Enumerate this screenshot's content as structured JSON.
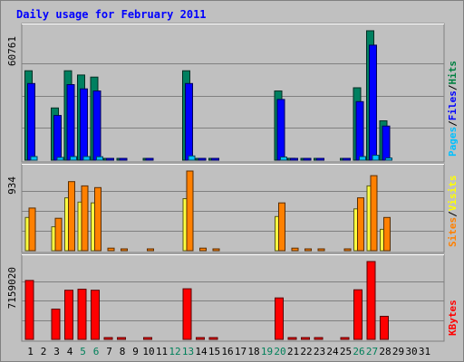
{
  "chart_data": {
    "type": "bar",
    "title": "Daily usage for February 2011",
    "days": [
      1,
      2,
      3,
      4,
      5,
      6,
      7,
      8,
      9,
      10,
      11,
      12,
      13,
      14,
      15,
      16,
      17,
      18,
      19,
      20,
      21,
      22,
      23,
      24,
      25,
      26,
      27,
      28,
      29,
      30,
      31
    ],
    "weekend_days": [
      5,
      6,
      12,
      13,
      19,
      20,
      26,
      27
    ],
    "panels": [
      {
        "name": "hits-files-pages",
        "ymax_label": "60761",
        "ymax": 60761,
        "legend": [
          {
            "text": "Pages",
            "color": "#00c0ff"
          },
          {
            "text": "/",
            "color": "#000000"
          },
          {
            "text": "Files",
            "color": "#0000ff"
          },
          {
            "text": "/",
            "color": "#000000"
          },
          {
            "text": "Hits",
            "color": "#008040"
          }
        ],
        "series": [
          {
            "name": "Hits",
            "color": "#008060",
            "values": [
              42000,
              0,
              24500,
              42000,
              40000,
              39000,
              300,
              300,
              0,
              300,
              0,
              0,
              42000,
              600,
              300,
              0,
              0,
              0,
              0,
              32500,
              900,
              300,
              300,
              0,
              300,
              34000,
              60761,
              18500,
              0,
              0,
              0
            ]
          },
          {
            "name": "Files",
            "color": "#0000ff",
            "values": [
              36000,
              0,
              21000,
              35500,
              33500,
              32500,
              200,
              200,
              0,
              200,
              0,
              0,
              36000,
              500,
              200,
              0,
              0,
              0,
              0,
              28500,
              800,
              200,
              200,
              0,
              200,
              27500,
              54000,
              16000,
              0,
              0,
              0
            ]
          },
          {
            "name": "Pages",
            "color": "#00c0ff",
            "values": [
              1700,
              0,
              1300,
              1700,
              1700,
              1600,
              0,
              0,
              0,
              0,
              0,
              0,
              2000,
              0,
              0,
              0,
              0,
              0,
              0,
              1500,
              0,
              0,
              0,
              0,
              0,
              1700,
              2300,
              1000,
              0,
              0,
              0
            ]
          }
        ]
      },
      {
        "name": "visits-sites",
        "ymax_label": "934",
        "ymax": 934,
        "legend": [
          {
            "text": "Sites",
            "color": "#ff8000"
          },
          {
            "text": "/",
            "color": "#000000"
          },
          {
            "text": "Visits",
            "color": "#ffff00"
          }
        ],
        "series": [
          {
            "name": "Visits",
            "color": "#ffff40",
            "values": [
              390,
              0,
              280,
              620,
              570,
              560,
              0,
              0,
              0,
              0,
              0,
              0,
              610,
              0,
              0,
              0,
              0,
              0,
              0,
              400,
              0,
              0,
              0,
              0,
              0,
              490,
              760,
              250,
              0,
              0,
              0
            ]
          },
          {
            "name": "Sites",
            "color": "#ff8000",
            "values": [
              500,
              0,
              380,
              810,
              760,
              740,
              30,
              20,
              0,
              10,
              0,
              0,
              934,
              30,
              10,
              0,
              0,
              0,
              0,
              560,
              30,
              20,
              20,
              0,
              15,
              620,
              880,
              390,
              0,
              0,
              0
            ]
          }
        ]
      },
      {
        "name": "kbytes",
        "ymax_label": "7159020",
        "ymax": 7159020,
        "legend": [
          {
            "text": "KBytes",
            "color": "#ff0000"
          }
        ],
        "series": [
          {
            "name": "KBytes",
            "color": "#ff0000",
            "values": [
              5420000,
              0,
              2780000,
              4520000,
              4610000,
              4520000,
              60000,
              30000,
              0,
              30000,
              0,
              0,
              4650000,
              60000,
              30000,
              0,
              0,
              0,
              0,
              3810000,
              60000,
              40000,
              40000,
              0,
              30000,
              4560000,
              7159020,
              2120000,
              0,
              0,
              0
            ]
          }
        ]
      }
    ]
  }
}
